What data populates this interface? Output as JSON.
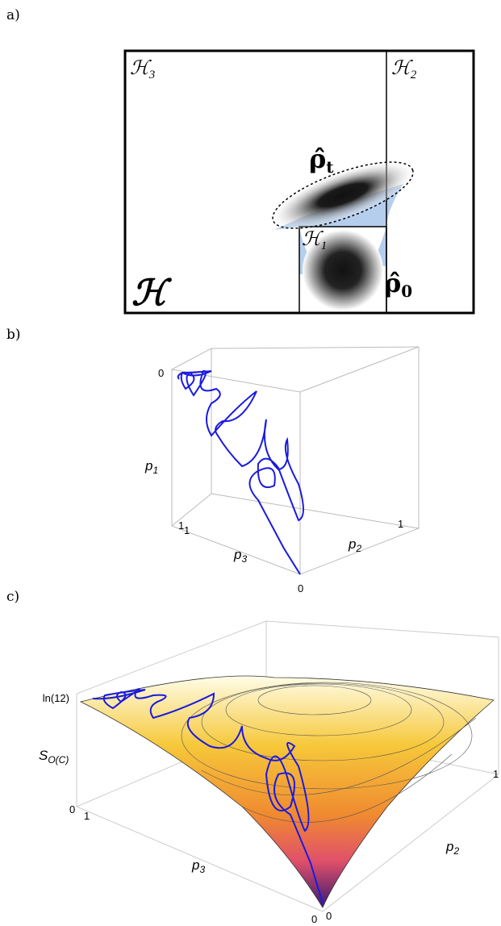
{
  "panel_a": {
    "label": "a)",
    "space_symbol": "ℋ",
    "subspace_3": {
      "symbol": "ℋ",
      "subscript": "3"
    },
    "subspace_2": {
      "symbol": "ℋ",
      "subscript": "2"
    },
    "subspace_1": {
      "symbol": "ℋ",
      "subscript": "1"
    },
    "rho_t": {
      "symbol": "ρ̂",
      "subscript": "t"
    },
    "rho_0": {
      "symbol": "ρ̂",
      "subscript": "0"
    }
  },
  "panel_b": {
    "label": "b)",
    "axis_p1": {
      "symbol": "p",
      "subscript": "1"
    },
    "axis_p2": {
      "symbol": "p",
      "subscript": "2"
    },
    "axis_p3": {
      "symbol": "p",
      "subscript": "3"
    },
    "tick_p1_top": "0",
    "tick_p1_bottom": "1",
    "tick_p3_left": "1",
    "tick_origin": "0",
    "tick_p2_right": "1"
  },
  "panel_c": {
    "label": "c)",
    "axis_s": {
      "symbol": "S",
      "subscript": "O(C)"
    },
    "axis_p2": {
      "symbol": "p",
      "subscript": "2"
    },
    "axis_p3": {
      "symbol": "p",
      "subscript": "3"
    },
    "tick_s_top": "ln(12)",
    "tick_s_bottom": "0",
    "tick_p3_left": "1",
    "tick_p3_origin": "0",
    "tick_p2_origin": "0",
    "tick_p2_right": "1"
  }
}
